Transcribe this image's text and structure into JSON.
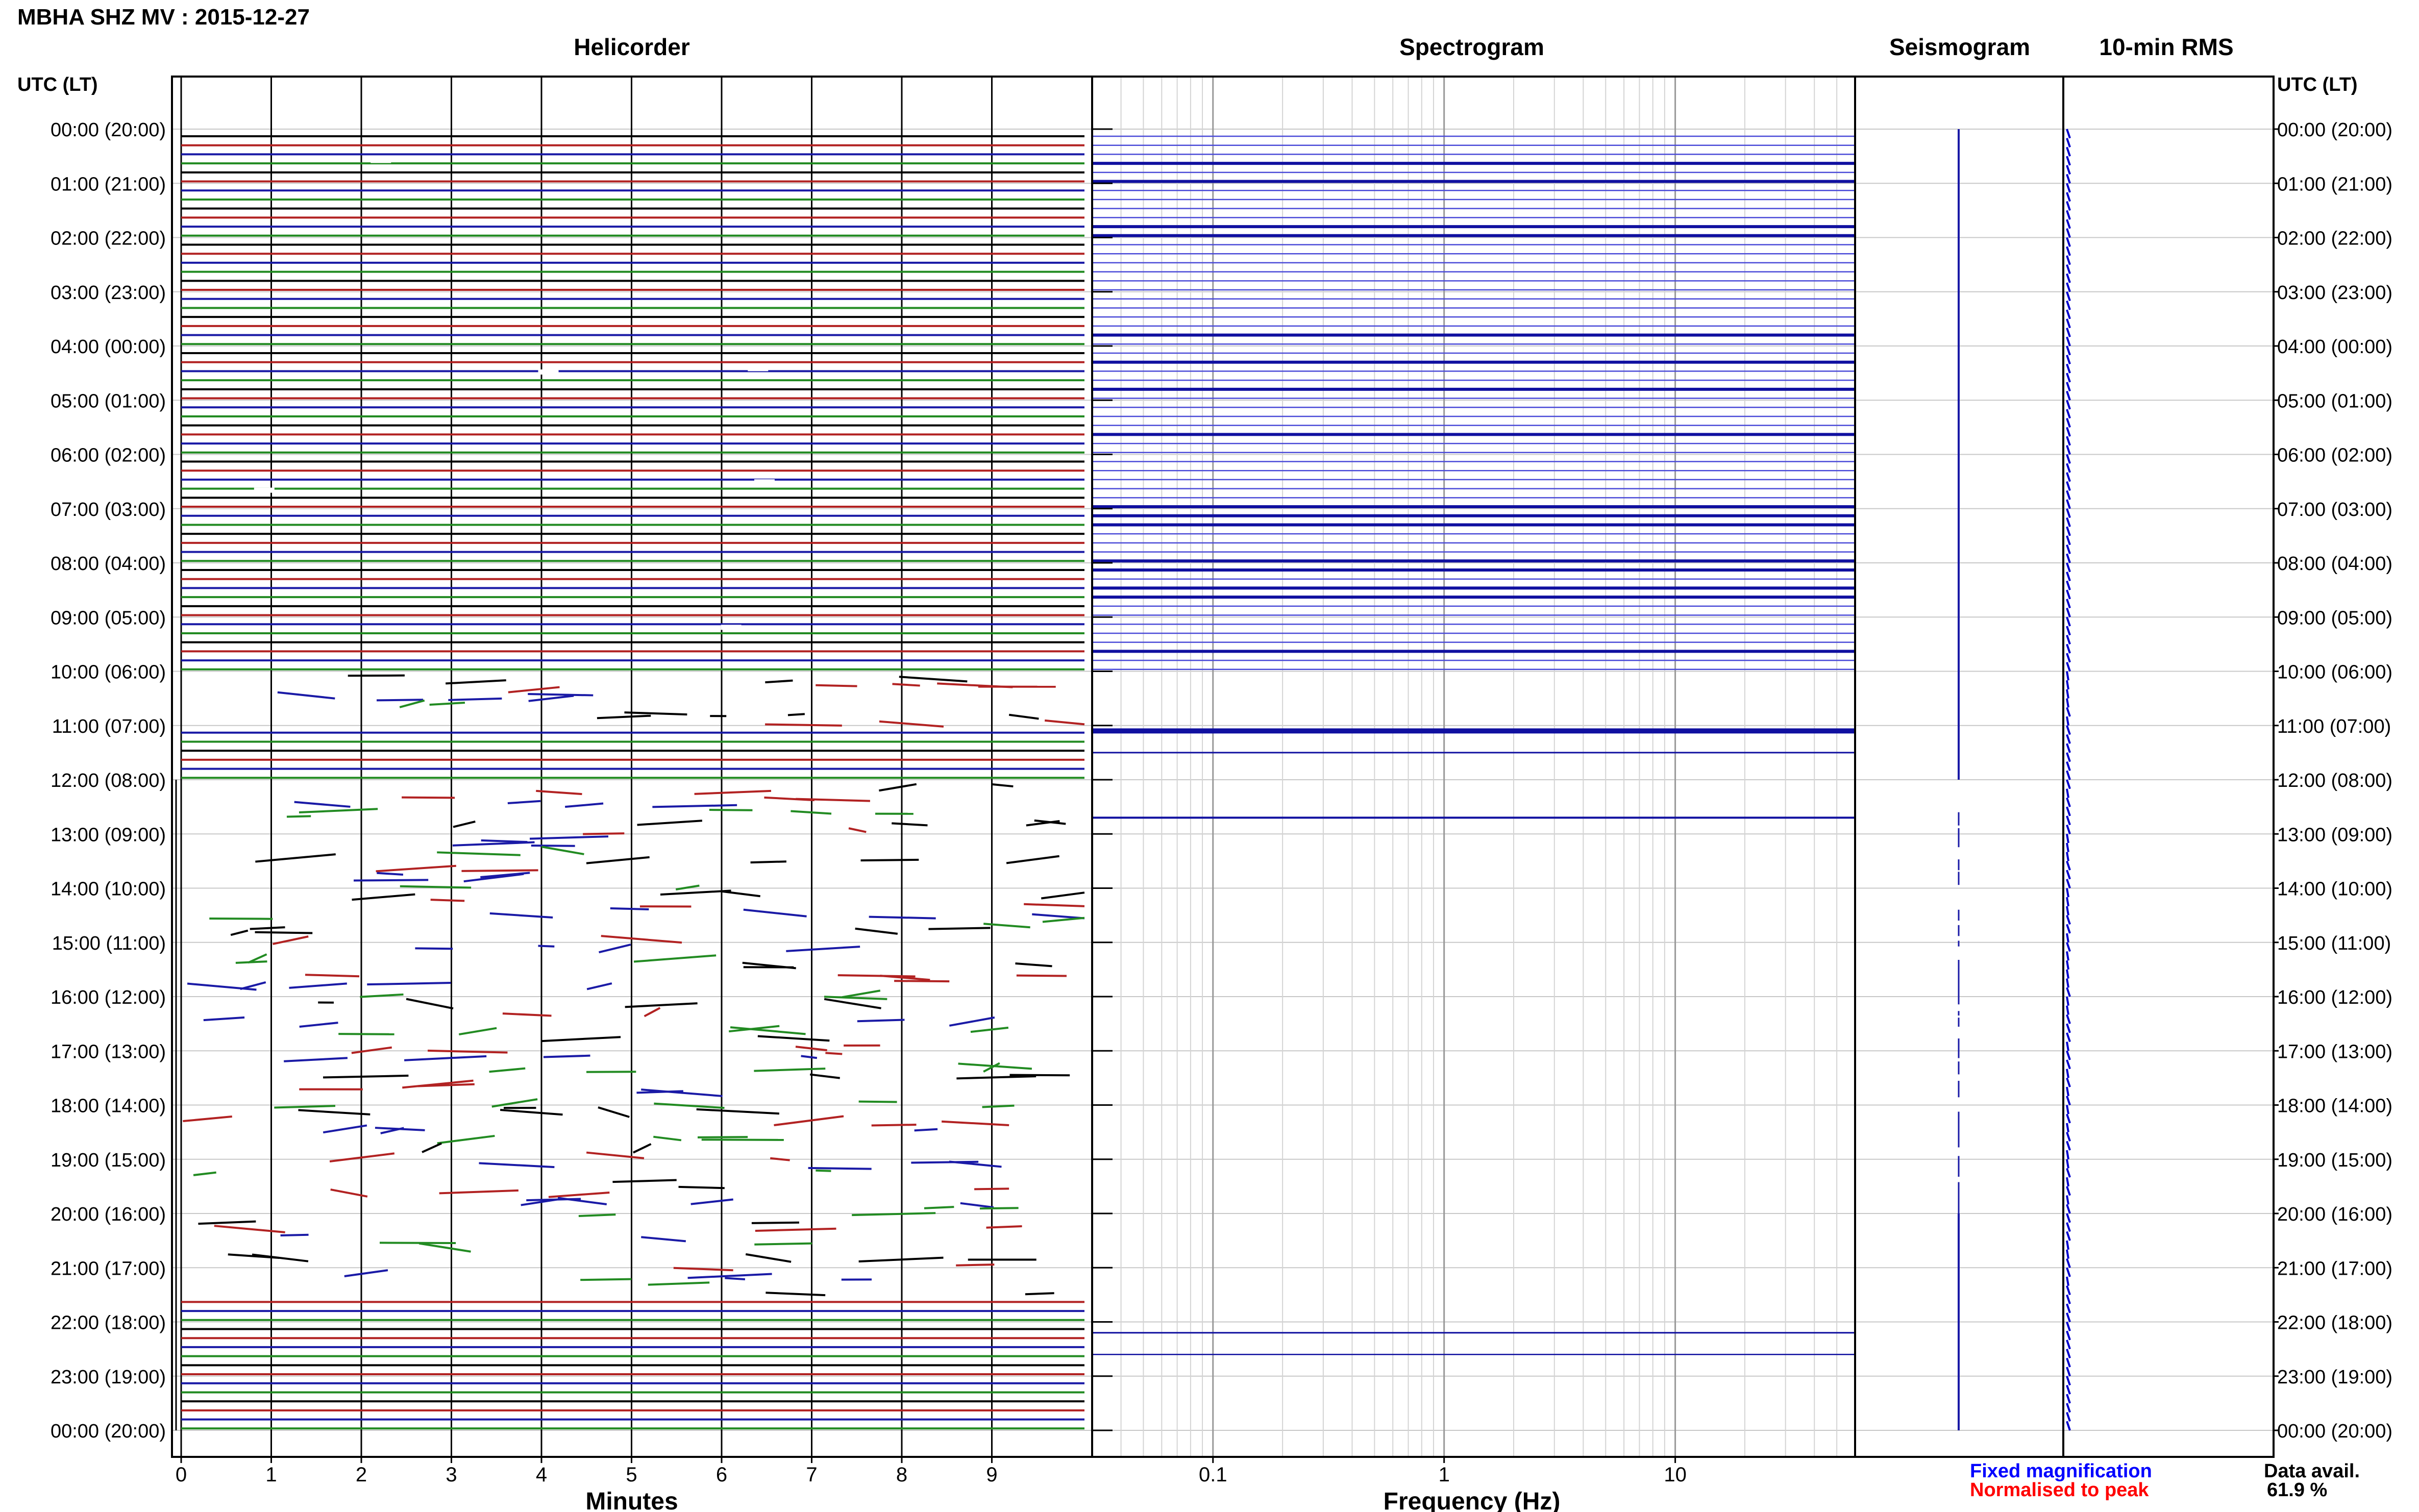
{
  "header": {
    "station_title": "MBHA SHZ MV : 2015-12-27",
    "utc_label_left": "UTC (LT)",
    "utc_label_right": "UTC (LT)"
  },
  "panels": {
    "helicorder_title": "Helicorder",
    "spectrogram_title": "Spectrogram",
    "seismogram_title": "Seismogram",
    "rms_title": "10-min RMS"
  },
  "colors": {
    "frame": "#000000",
    "trace_black": "#000000",
    "trace_red": "#b22222",
    "trace_green": "#228b22",
    "trace_blue": "#1a1aa6",
    "spectro_line": "#1010a0",
    "spectro_light": "#4a4ad8",
    "grid": "#c8c8c8",
    "legend_fixed": "#0000ff",
    "legend_normalised": "#ff0000"
  },
  "chart_data": {
    "type": "line",
    "time_labels": [
      "00:00 (20:00)",
      "01:00 (21:00)",
      "02:00 (22:00)",
      "03:00 (23:00)",
      "04:00 (00:00)",
      "05:00 (01:00)",
      "06:00 (02:00)",
      "07:00 (03:00)",
      "08:00 (04:00)",
      "09:00 (05:00)",
      "10:00 (06:00)",
      "11:00 (07:00)",
      "12:00 (08:00)",
      "13:00 (09:00)",
      "14:00 (10:00)",
      "15:00 (11:00)",
      "16:00 (12:00)",
      "17:00 (13:00)",
      "18:00 (14:00)",
      "19:00 (15:00)",
      "20:00 (16:00)",
      "21:00 (17:00)",
      "22:00 (18:00)",
      "23:00 (19:00)",
      "00:00 (20:00)"
    ],
    "helicorder": {
      "xlabel": "Minutes",
      "x_ticks": [
        "0",
        "1",
        "2",
        "3",
        "4",
        "5",
        "6",
        "7",
        "8",
        "9"
      ],
      "xlim": [
        0,
        10
      ],
      "continuous_trace_hours": [
        [
          0,
          10
        ],
        [
          11,
          12
        ],
        [
          21.5,
          24
        ]
      ],
      "sparse_trace_hours": [
        [
          10,
          11
        ],
        [
          12,
          21.5
        ]
      ]
    },
    "spectrogram": {
      "xlabel": "Frequency (Hz)",
      "x_scale": "log",
      "x_ticks": [
        "0.1",
        "1",
        "10"
      ],
      "xlim": [
        0.03,
        60
      ]
    },
    "legend": {
      "fixed": "Fixed magnification",
      "normalised": "Normalised to peak",
      "data_avail_label": "Data avail.",
      "data_avail_value": "61.9 %"
    }
  }
}
